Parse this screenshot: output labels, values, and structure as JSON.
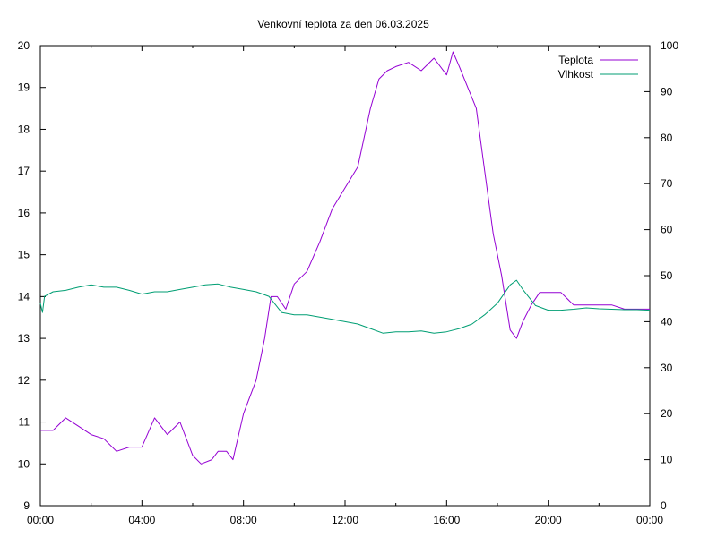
{
  "chart_data": {
    "type": "line",
    "title": "Venkovní teplota za den 06.03.2025",
    "xlabel": "",
    "ylabel": "",
    "y2label": "",
    "x_ticks": [
      "00:00",
      "04:00",
      "08:00",
      "12:00",
      "16:00",
      "20:00",
      "00:00"
    ],
    "x_range_hours": [
      0,
      24
    ],
    "ylim": [
      9,
      20
    ],
    "y_ticks": [
      9,
      10,
      11,
      12,
      13,
      14,
      15,
      16,
      17,
      18,
      19,
      20
    ],
    "y2lim": [
      0,
      100
    ],
    "y2_ticks": [
      0,
      10,
      20,
      30,
      40,
      50,
      60,
      70,
      80,
      90,
      100
    ],
    "grid": false,
    "legend": "top-right",
    "series": [
      {
        "name": "Teplota",
        "axis": "left",
        "color": "#9400d3",
        "points": [
          [
            "00:00",
            10.8
          ],
          [
            "00:30",
            10.8
          ],
          [
            "01:00",
            11.1
          ],
          [
            "01:30",
            10.9
          ],
          [
            "02:00",
            10.7
          ],
          [
            "02:30",
            10.6
          ],
          [
            "03:00",
            10.3
          ],
          [
            "03:30",
            10.4
          ],
          [
            "04:00",
            10.4
          ],
          [
            "04:30",
            11.1
          ],
          [
            "05:00",
            10.7
          ],
          [
            "05:30",
            11.0
          ],
          [
            "06:00",
            10.2
          ],
          [
            "06:20",
            10.0
          ],
          [
            "06:45",
            10.1
          ],
          [
            "07:00",
            10.3
          ],
          [
            "07:20",
            10.3
          ],
          [
            "07:35",
            10.1
          ],
          [
            "08:00",
            11.2
          ],
          [
            "08:30",
            12.0
          ],
          [
            "08:50",
            13.0
          ],
          [
            "09:05",
            14.0
          ],
          [
            "09:20",
            14.0
          ],
          [
            "09:40",
            13.7
          ],
          [
            "10:00",
            14.3
          ],
          [
            "10:30",
            14.6
          ],
          [
            "11:00",
            15.3
          ],
          [
            "11:30",
            16.1
          ],
          [
            "12:00",
            16.6
          ],
          [
            "12:30",
            17.1
          ],
          [
            "13:00",
            18.5
          ],
          [
            "13:20",
            19.2
          ],
          [
            "13:40",
            19.4
          ],
          [
            "14:00",
            19.5
          ],
          [
            "14:30",
            19.6
          ],
          [
            "15:00",
            19.4
          ],
          [
            "15:30",
            19.7
          ],
          [
            "16:00",
            19.3
          ],
          [
            "16:15",
            19.85
          ],
          [
            "16:30",
            19.5
          ],
          [
            "16:50",
            19.0
          ],
          [
            "17:10",
            18.5
          ],
          [
            "17:30",
            17.0
          ],
          [
            "17:50",
            15.5
          ],
          [
            "18:10",
            14.5
          ],
          [
            "18:30",
            13.2
          ],
          [
            "18:45",
            13.0
          ],
          [
            "19:00",
            13.4
          ],
          [
            "19:20",
            13.8
          ],
          [
            "19:40",
            14.1
          ],
          [
            "20:00",
            14.1
          ],
          [
            "20:30",
            14.1
          ],
          [
            "21:00",
            13.8
          ],
          [
            "21:30",
            13.8
          ],
          [
            "22:00",
            13.8
          ],
          [
            "22:30",
            13.8
          ],
          [
            "23:00",
            13.7
          ],
          [
            "23:30",
            13.7
          ],
          [
            "24:00",
            13.7
          ]
        ]
      },
      {
        "name": "Vlhkost",
        "axis": "right",
        "color": "#009e73",
        "points": [
          [
            "00:00",
            44.0
          ],
          [
            "00:05",
            42.0
          ],
          [
            "00:10",
            45.5
          ],
          [
            "00:30",
            46.5
          ],
          [
            "01:00",
            46.8
          ],
          [
            "01:30",
            47.5
          ],
          [
            "02:00",
            48.0
          ],
          [
            "02:30",
            47.5
          ],
          [
            "03:00",
            47.5
          ],
          [
            "03:30",
            46.8
          ],
          [
            "04:00",
            46.0
          ],
          [
            "04:30",
            46.5
          ],
          [
            "05:00",
            46.5
          ],
          [
            "05:30",
            47.0
          ],
          [
            "06:00",
            47.5
          ],
          [
            "06:30",
            48.0
          ],
          [
            "07:00",
            48.2
          ],
          [
            "07:30",
            47.5
          ],
          [
            "08:00",
            47.0
          ],
          [
            "08:30",
            46.5
          ],
          [
            "09:00",
            45.5
          ],
          [
            "09:30",
            42.0
          ],
          [
            "10:00",
            41.5
          ],
          [
            "10:30",
            41.5
          ],
          [
            "11:00",
            41.0
          ],
          [
            "11:30",
            40.5
          ],
          [
            "12:00",
            40.0
          ],
          [
            "12:30",
            39.5
          ],
          [
            "13:00",
            38.5
          ],
          [
            "13:30",
            37.5
          ],
          [
            "14:00",
            37.8
          ],
          [
            "14:30",
            37.8
          ],
          [
            "15:00",
            38.0
          ],
          [
            "15:30",
            37.5
          ],
          [
            "16:00",
            37.8
          ],
          [
            "16:30",
            38.5
          ],
          [
            "17:00",
            39.5
          ],
          [
            "17:30",
            41.5
          ],
          [
            "18:00",
            44.0
          ],
          [
            "18:30",
            48.0
          ],
          [
            "18:45",
            49.0
          ],
          [
            "19:00",
            47.0
          ],
          [
            "19:30",
            43.5
          ],
          [
            "20:00",
            42.5
          ],
          [
            "20:30",
            42.5
          ],
          [
            "21:00",
            42.7
          ],
          [
            "21:30",
            43.0
          ],
          [
            "22:00",
            42.8
          ],
          [
            "22:30",
            42.7
          ],
          [
            "23:00",
            42.6
          ],
          [
            "23:30",
            42.6
          ],
          [
            "24:00",
            42.5
          ]
        ]
      }
    ]
  }
}
